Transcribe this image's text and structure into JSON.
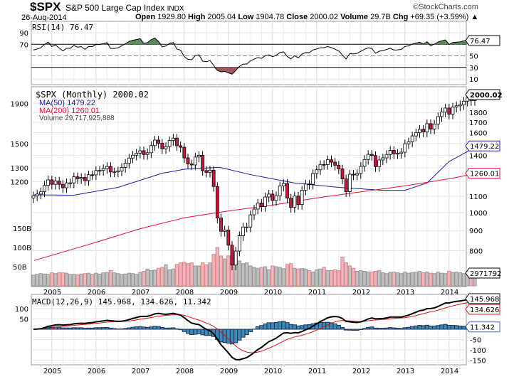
{
  "header": {
    "symbol": "$SPX",
    "name": "S&P 500 Large Cap Index",
    "exchange": "INDX",
    "brand": "©StockCharts.com",
    "date": "26-Aug-2014",
    "open_l": "Open",
    "open": "1929.80",
    "high_l": "High",
    "high": "2005.04",
    "low_l": "Low",
    "low": "1904.78",
    "close_l": "Close",
    "close": "2000.02",
    "vol_l": "Volume",
    "vol": "29.7B",
    "chg_l": "Chg",
    "chg": "+69.35 (+3.59%)"
  },
  "colors": {
    "up": "#000000",
    "down": "#d4143c",
    "ma50": "#1a1aa0",
    "ma200": "#e0103a",
    "vol_up": "#c0c0c0",
    "vol_down": "#f0b4bc",
    "rsi_fill": "#5a8a5a",
    "rsi_low_fill": "#a05a5a",
    "macd_hist": "#3a8ab8",
    "signal": "#e01010"
  },
  "chart_data": {
    "type": "candlestick",
    "period": "Monthly",
    "start": "2004-08",
    "price_scale": "log",
    "grid": true,
    "legend": {
      "price": "$SPX (Monthly) 2000.02",
      "ma50": "MA(50) 1479.22",
      "ma200": "MA(200) 1260.01",
      "volume": "Volume 29,717,925,888",
      "rsi": "RSI(14) 76.47",
      "macd": "MACD(12,26,9) 145.968, 134.626, 11.342"
    },
    "x_labels": [
      "2005",
      "2006",
      "2007",
      "2008",
      "2009",
      "2010",
      "2011",
      "2012",
      "2013",
      "2014"
    ],
    "price_ticks": [
      800,
      900,
      1000,
      1100,
      1200,
      1300,
      1400,
      1500,
      1600,
      1700,
      1800,
      1900
    ],
    "price_tags": {
      "close": "2000.02",
      "ma50": "1479.22",
      "ma200": "1260.01",
      "volume": "2971792"
    },
    "volume_ticks": [
      "50B",
      "100B",
      "150B"
    ],
    "rsi_ticks": [
      10,
      30,
      50,
      70,
      90
    ],
    "rsi_tag": "76.47",
    "macd_ticks": [
      -150,
      -100,
      -50,
      50,
      100
    ],
    "macd_tags": {
      "macd": "145.968",
      "signal": "134.626",
      "hist": "11.342"
    },
    "closes": [
      1104,
      1115,
      1130,
      1174,
      1212,
      1181,
      1204,
      1181,
      1157,
      1191,
      1191,
      1234,
      1220,
      1229,
      1207,
      1249,
      1248,
      1280,
      1281,
      1295,
      1311,
      1270,
      1270,
      1277,
      1304,
      1336,
      1378,
      1401,
      1418,
      1438,
      1407,
      1421,
      1482,
      1531,
      1503,
      1455,
      1474,
      1527,
      1549,
      1481,
      1468,
      1379,
      1331,
      1323,
      1386,
      1400,
      1280,
      1267,
      1283,
      1166,
      969,
      896,
      903,
      826,
      735,
      798,
      873,
      919,
      919,
      987,
      1021,
      1057,
      1036,
      1096,
      1115,
      1074,
      1104,
      1169,
      1187,
      1089,
      1031,
      1102,
      1049,
      1141,
      1183,
      1181,
      1258,
      1286,
      1327,
      1326,
      1364,
      1345,
      1321,
      1292,
      1219,
      1131,
      1253,
      1247,
      1258,
      1312,
      1366,
      1408,
      1398,
      1310,
      1362,
      1379,
      1407,
      1441,
      1412,
      1416,
      1426,
      1498,
      1515,
      1569,
      1598,
      1631,
      1606,
      1686,
      1633,
      1682,
      1757,
      1806,
      1848,
      1783,
      1859,
      1872,
      1884,
      1924,
      1960,
      1931,
      2000.02
    ],
    "volume_b": [
      28,
      30,
      32,
      31,
      30,
      34,
      32,
      35,
      34,
      33,
      30,
      30,
      29,
      31,
      32,
      33,
      30,
      33,
      31,
      34,
      35,
      40,
      34,
      32,
      30,
      31,
      33,
      32,
      30,
      35,
      38,
      44,
      40,
      41,
      46,
      48,
      55,
      42,
      44,
      56,
      60,
      62,
      58,
      60,
      52,
      52,
      60,
      55,
      60,
      82,
      100,
      78,
      70,
      78,
      80,
      84,
      65,
      58,
      60,
      52,
      48,
      46,
      48,
      50,
      42,
      52,
      50,
      48,
      45,
      56,
      58,
      46,
      44,
      45,
      44,
      40,
      36,
      42,
      44,
      48,
      40,
      40,
      42,
      40,
      75,
      60,
      52,
      46,
      38,
      40,
      38,
      36,
      36,
      38,
      40,
      34,
      32,
      35,
      36,
      34,
      32,
      36,
      33,
      35,
      36,
      38,
      34,
      36,
      33,
      32,
      36,
      33,
      32,
      38,
      35,
      36,
      34,
      32,
      30,
      32,
      29.7
    ],
    "ma50": [
      [
        2004.6,
        1110
      ],
      [
        2005.5,
        1108
      ],
      [
        2006.5,
        1160
      ],
      [
        2007.5,
        1260
      ],
      [
        2008.0,
        1290
      ],
      [
        2008.8,
        1305
      ],
      [
        2009.5,
        1250
      ],
      [
        2010.5,
        1190
      ],
      [
        2011.5,
        1160
      ],
      [
        2012.5,
        1140
      ],
      [
        2013.0,
        1140
      ],
      [
        2013.5,
        1190
      ],
      [
        2014.0,
        1350
      ],
      [
        2014.65,
        1479.22
      ]
    ],
    "ma200": [
      [
        2004.6,
        755
      ],
      [
        2006.0,
        840
      ],
      [
        2007.0,
        910
      ],
      [
        2008.0,
        970
      ],
      [
        2009.0,
        1010
      ],
      [
        2010.0,
        1045
      ],
      [
        2011.0,
        1090
      ],
      [
        2012.0,
        1130
      ],
      [
        2013.0,
        1170
      ],
      [
        2014.0,
        1220
      ],
      [
        2014.65,
        1260.01
      ]
    ]
  }
}
